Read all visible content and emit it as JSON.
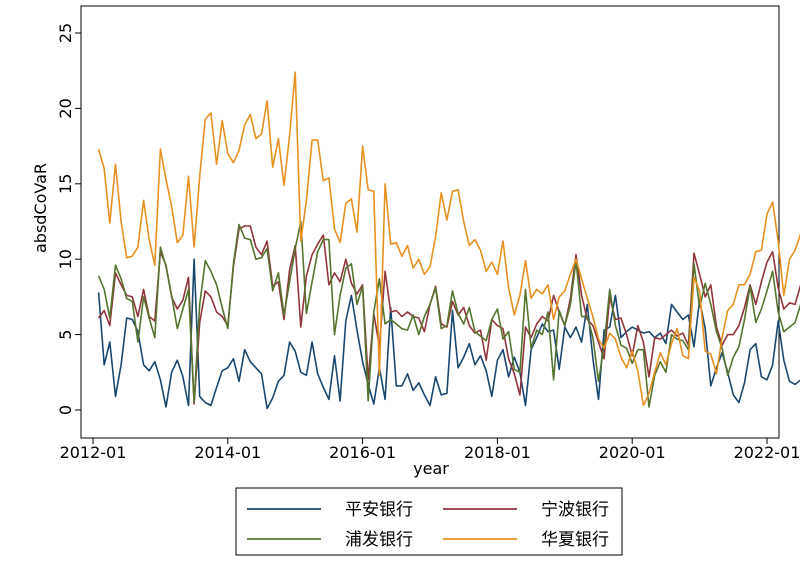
{
  "chart_data": {
    "type": "line",
    "xlabel": "year",
    "ylabel": "absdCoVaR",
    "ylim": [
      0,
      25
    ],
    "xlim": [
      "2012-01",
      "2022-01"
    ],
    "y_ticks": [
      0,
      5,
      10,
      15,
      20,
      25
    ],
    "x_ticks": [
      "2012-01",
      "2014-01",
      "2016-01",
      "2018-01",
      "2020-01",
      "2022-01"
    ],
    "grid": false,
    "legend_position": "bottom",
    "frequency": "monthly",
    "x_start": "2012-02",
    "series": [
      {
        "name": "平安银行",
        "color": "#1a476f",
        "values": [
          7.8,
          3.0,
          4.5,
          0.9,
          3.0,
          6.1,
          6.0,
          5.2,
          3.0,
          2.6,
          3.2,
          2.0,
          0.2,
          2.5,
          3.3,
          2.2,
          0.3,
          10.0,
          0.9,
          0.5,
          0.3,
          1.5,
          2.6,
          2.8,
          3.4,
          1.9,
          4.0,
          3.2,
          2.8,
          2.4,
          0.1,
          0.8,
          1.9,
          2.3,
          4.5,
          3.9,
          2.5,
          2.3,
          4.5,
          2.4,
          1.5,
          0.7,
          3.6,
          0.6,
          5.9,
          7.6,
          5.3,
          3.2,
          1.7,
          0.4,
          2.8,
          0.7,
          6.8,
          1.6,
          1.6,
          2.4,
          1.3,
          1.8,
          1.0,
          0.3,
          2.2,
          1.0,
          1.1,
          6.6,
          2.8,
          3.5,
          4.4,
          3.0,
          3.6,
          2.6,
          0.9,
          3.3,
          4.0,
          2.2,
          3.5,
          2.5,
          0.3,
          4.0,
          4.8,
          5.7,
          5.2,
          5.3,
          2.7,
          5.5,
          4.8,
          5.5,
          4.5,
          7.0,
          3.4,
          0.7,
          5.3,
          5.5,
          7.6,
          4.8,
          5.2,
          5.5,
          5.3,
          5.1,
          5.2,
          4.8,
          5.1,
          4.4,
          7.0,
          6.5,
          6.0,
          6.3,
          4.2,
          7.3,
          5.4,
          1.6,
          2.8,
          3.8,
          2.5,
          1.0,
          0.5,
          1.8,
          4.0,
          4.4,
          2.2,
          2.0,
          3.0,
          5.9,
          3.3,
          1.9,
          1.7,
          2.0
        ]
      },
      {
        "name": "宁波银行",
        "color": "#90353b",
        "values": [
          6.1,
          6.6,
          5.6,
          9.1,
          8.3,
          7.6,
          7.5,
          6.2,
          8.0,
          6.2,
          5.9,
          10.5,
          9.6,
          7.5,
          6.7,
          7.3,
          8.8,
          0.4,
          5.8,
          7.9,
          7.5,
          6.5,
          6.2,
          5.6,
          9.5,
          12.0,
          12.2,
          12.2,
          10.8,
          10.3,
          11.2,
          8.2,
          8.5,
          6.0,
          9.3,
          10.9,
          5.5,
          8.9,
          10.3,
          11.0,
          11.6,
          8.3,
          9.1,
          8.5,
          10.0,
          8.4,
          7.7,
          8.3,
          2.0,
          6.4,
          4.2,
          9.2,
          6.5,
          6.6,
          6.2,
          6.5,
          6.2,
          6.1,
          5.2,
          7.0,
          8.2,
          5.7,
          5.5,
          7.2,
          6.3,
          6.8,
          5.6,
          5.1,
          5.3,
          3.3,
          6.0,
          5.6,
          5.4,
          3.4,
          2.4,
          1.0,
          5.5,
          4.8,
          5.7,
          6.2,
          5.9,
          7.6,
          6.5,
          5.6,
          7.4,
          10.3,
          7.6,
          6.0,
          5.6,
          4.5,
          3.4,
          7.5,
          6.0,
          6.1,
          5.0,
          3.6,
          5.6,
          4.5,
          2.2,
          4.8,
          4.7,
          5.0,
          5.3,
          4.9,
          5.1,
          4.3,
          10.4,
          9.0,
          7.5,
          8.3,
          5.5,
          4.3,
          5.0,
          5.0,
          5.6,
          6.8,
          8.3,
          7.0,
          8.5,
          9.8,
          10.5,
          8.1,
          6.7,
          7.1,
          7.0,
          8.3,
          5.8
        ]
      },
      {
        "name": "浦发银行",
        "color": "#55752f",
        "values": [
          8.9,
          8.0,
          6.1,
          9.6,
          8.7,
          7.4,
          7.2,
          4.5,
          7.5,
          6.1,
          4.8,
          10.8,
          9.5,
          7.6,
          5.4,
          6.7,
          8.0,
          0.5,
          7.0,
          9.9,
          9.2,
          8.3,
          6.8,
          5.4,
          9.7,
          12.3,
          11.4,
          11.3,
          10.0,
          10.1,
          10.7,
          7.9,
          9.1,
          6.3,
          8.5,
          10.7,
          12.5,
          6.4,
          8.5,
          10.5,
          11.3,
          11.3,
          5.0,
          7.6,
          9.4,
          9.7,
          7.0,
          8.2,
          0.6,
          6.5,
          8.7,
          5.7,
          6.0,
          5.7,
          5.4,
          5.3,
          6.3,
          5.0,
          6.2,
          7.0,
          8.1,
          5.4,
          5.6,
          7.9,
          6.4,
          5.7,
          6.8,
          5.2,
          4.9,
          4.6,
          6.0,
          6.7,
          4.7,
          5.2,
          2.7,
          2.5,
          8.0,
          4.1,
          5.3,
          5.0,
          6.5,
          2.0,
          6.6,
          5.6,
          7.0,
          9.9,
          6.2,
          6.2,
          4.8,
          1.9,
          4.3,
          8.0,
          5.6,
          4.3,
          4.1,
          3.1,
          4.0,
          4.0,
          0.2,
          2.3,
          3.2,
          2.5,
          5.0,
          4.7,
          4.6,
          4.0,
          9.7,
          6.8,
          8.4,
          7.0,
          5.2,
          4.1,
          2.3,
          3.5,
          4.2,
          6.0,
          8.2,
          5.8,
          6.7,
          7.9,
          9.2,
          6.5,
          5.2,
          5.5,
          5.8,
          7.0,
          4.6
        ]
      },
      {
        "name": "华夏银行",
        "color": "#e8901f",
        "values": [
          17.3,
          16.0,
          12.4,
          16.3,
          12.5,
          10.1,
          10.2,
          10.8,
          13.9,
          11.3,
          9.6,
          17.3,
          15.3,
          13.5,
          11.1,
          11.6,
          15.5,
          10.8,
          15.5,
          19.3,
          19.7,
          16.3,
          19.2,
          17.0,
          16.4,
          17.2,
          18.9,
          19.6,
          18.0,
          18.3,
          20.5,
          16.1,
          18.0,
          14.9,
          18.2,
          22.4,
          11.2,
          13.9,
          17.9,
          17.9,
          15.2,
          15.4,
          12.0,
          11.1,
          13.7,
          14.0,
          11.8,
          17.5,
          14.6,
          14.5,
          2.3,
          15.0,
          11.0,
          11.1,
          10.2,
          10.9,
          9.4,
          10.0,
          9.0,
          9.5,
          11.5,
          14.4,
          12.6,
          14.5,
          14.6,
          12.5,
          10.9,
          11.3,
          10.6,
          9.2,
          9.8,
          9.0,
          11.2,
          8.1,
          6.3,
          7.6,
          9.9,
          7.4,
          8.0,
          7.7,
          8.3,
          6.0,
          7.5,
          7.9,
          9.0,
          10.0,
          8.7,
          7.4,
          6.2,
          4.7,
          4.1,
          5.1,
          4.7,
          3.5,
          2.8,
          3.9,
          2.6,
          0.3,
          1.1,
          2.5,
          3.8,
          3.0,
          4.4,
          5.4,
          3.6,
          3.4,
          8.8,
          7.9,
          3.9,
          3.7,
          2.4,
          4.8,
          6.6,
          7.0,
          8.3,
          8.3,
          9.0,
          10.5,
          10.6,
          13.0,
          13.8,
          11.2,
          7.6,
          10.0,
          10.6,
          11.7,
          10.5
        ]
      }
    ]
  }
}
